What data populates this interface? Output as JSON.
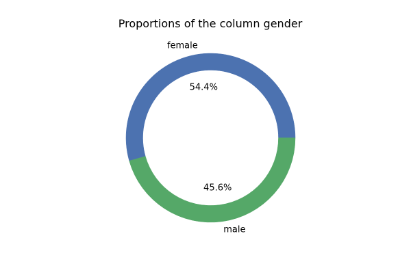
{
  "chart_data": {
    "type": "pie",
    "title": "Proportions of the column gender",
    "donut": true,
    "start_angle_deg": 0,
    "direction": "counterclockwise",
    "slices": [
      {
        "label": "female",
        "value": 54.4,
        "percent_label": "54.4%",
        "color": "#4c72b0"
      },
      {
        "label": "male",
        "value": 45.6,
        "percent_label": "45.6%",
        "color": "#55a868"
      }
    ]
  }
}
